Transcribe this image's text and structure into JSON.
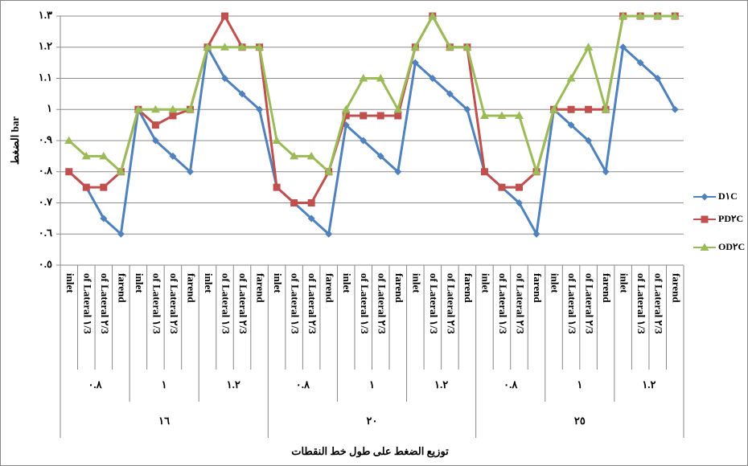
{
  "chart_data": {
    "type": "line",
    "y_axis_title": "الضغط bar",
    "x_axis_title": "توزيع الضغط على طول خط النقطات",
    "categories": [
      "inlet",
      "of Lateral ١/3",
      "of Lateral ٢/3",
      "farend",
      "inlet",
      "of Lateral ١/3",
      "of Lateral ٢/3",
      "farend",
      "inlet",
      "of Lateral ١/3",
      "of Lateral ٢/3",
      "farend",
      "inlet",
      "of Lateral ١/3",
      "of Lateral ٢/3",
      "farend",
      "inlet",
      "of Lateral ١/3",
      "of Lateral ٢/3",
      "farend",
      "inlet",
      "of Lateral ١/3",
      "of Lateral ٢/3",
      "farend",
      "inlet",
      "of Lateral ١/3",
      "of Lateral ٢/3",
      "farend",
      "inlet",
      "of Lateral ١/3",
      "of Lateral ٢/3",
      "farend",
      "inlet",
      "of Lateral ١/3",
      "of Lateral ٢/3",
      "farend"
    ],
    "subgroups": [
      "٠.٨",
      "١",
      "١.٢",
      "٠.٨",
      "١",
      "١.٢",
      "٠.٨",
      "١",
      "١.٢"
    ],
    "groups": [
      "١٦",
      "٢٠",
      "٢٥"
    ],
    "series": [
      {
        "name": "D١C",
        "color": "#4f81bd",
        "marker": "diamond",
        "values": [
          0.8,
          0.75,
          0.65,
          0.6,
          1,
          0.9,
          0.85,
          0.8,
          1.2,
          1.1,
          1.05,
          1,
          0.75,
          0.7,
          0.65,
          0.6,
          0.95,
          0.9,
          0.85,
          0.8,
          1.15,
          1.1,
          1.05,
          1,
          0.8,
          0.75,
          0.7,
          0.6,
          1,
          0.95,
          0.9,
          0.8,
          1.2,
          1.15,
          1.1,
          1
        ]
      },
      {
        "name": "PD٢C",
        "color": "#c0504d",
        "marker": "square",
        "values": [
          0.8,
          0.75,
          0.75,
          0.8,
          1,
          0.95,
          0.98,
          1,
          1.2,
          1.3,
          1.2,
          1.2,
          0.75,
          0.7,
          0.7,
          0.8,
          0.98,
          0.98,
          0.98,
          0.98,
          1.2,
          1.3,
          1.2,
          1.2,
          0.8,
          0.75,
          0.75,
          0.8,
          1,
          1,
          1,
          1,
          1.3,
          1.3,
          1.3,
          1.3
        ]
      },
      {
        "name": "OD٢C",
        "color": "#9bbb59",
        "marker": "triangle",
        "values": [
          0.9,
          0.85,
          0.85,
          0.8,
          1,
          1,
          1,
          1,
          1.2,
          1.2,
          1.2,
          1.2,
          0.9,
          0.85,
          0.85,
          0.8,
          1,
          1.1,
          1.1,
          1,
          1.2,
          1.3,
          1.2,
          1.2,
          0.98,
          0.98,
          0.98,
          0.8,
          1,
          1.1,
          1.2,
          1,
          1.3,
          1.3,
          1.3,
          1.3
        ]
      }
    ],
    "ylim": [
      0.5,
      1.3
    ],
    "yticks": [
      {
        "value": 0.5,
        "label": "٠.٥"
      },
      {
        "value": 0.6,
        "label": "٠.٦"
      },
      {
        "value": 0.7,
        "label": "٠.٧"
      },
      {
        "value": 0.8,
        "label": "٠.٨"
      },
      {
        "value": 0.9,
        "label": "٠.٩"
      },
      {
        "value": 1,
        "label": "١"
      },
      {
        "value": 1.1,
        "label": "١.١"
      },
      {
        "value": 1.2,
        "label": "١.٢"
      },
      {
        "value": 1.3,
        "label": "١.٣"
      }
    ],
    "grid": true,
    "legend": "right"
  }
}
